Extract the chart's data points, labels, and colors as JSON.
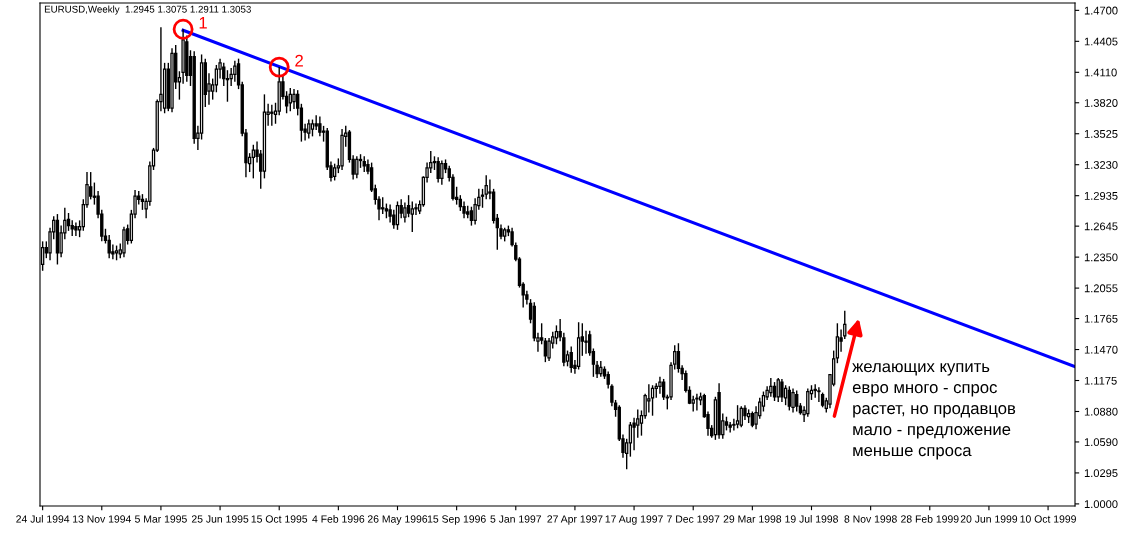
{
  "chart_data": {
    "type": "candlestick",
    "title": "EURUSD,Weekly  1.2945 1.3075 1.2911 1.3053",
    "x": [
      "1994-07-24",
      "1994-07-31",
      "1994-08-07",
      "1994-08-14",
      "1994-08-21",
      "1994-08-28",
      "1994-09-04",
      "1994-09-11",
      "1994-09-18",
      "1994-09-25",
      "1994-10-02",
      "1994-10-09",
      "1994-10-16",
      "1994-10-23",
      "1994-10-30",
      "1994-11-06",
      "1994-11-13",
      "1994-11-20",
      "1994-11-27",
      "1994-12-04",
      "1994-12-11",
      "1994-12-18",
      "1994-12-25",
      "1995-01-01",
      "1995-01-08",
      "1995-01-15",
      "1995-01-22",
      "1995-01-29",
      "1995-02-05",
      "1995-02-12",
      "1995-02-19",
      "1995-02-26",
      "1995-03-05",
      "1995-03-12",
      "1995-03-19",
      "1995-03-26",
      "1995-04-02",
      "1995-04-09",
      "1995-04-16",
      "1995-04-23",
      "1995-04-30",
      "1995-05-07",
      "1995-05-14",
      "1995-05-21",
      "1995-05-28",
      "1995-06-04",
      "1995-06-11",
      "1995-06-18",
      "1995-06-25",
      "1995-07-02",
      "1995-07-09",
      "1995-07-16",
      "1995-07-23",
      "1995-07-30",
      "1995-08-06",
      "1995-08-13",
      "1995-08-20",
      "1995-08-27",
      "1995-09-03",
      "1995-09-10",
      "1995-09-17",
      "1995-09-24",
      "1995-10-01",
      "1995-10-08",
      "1995-10-15",
      "1995-10-22",
      "1995-10-29",
      "1995-11-05",
      "1995-11-12",
      "1995-11-19",
      "1995-11-26",
      "1995-12-03",
      "1995-12-10",
      "1995-12-17",
      "1995-12-24",
      "1995-12-31",
      "1996-01-07",
      "1996-01-14",
      "1996-01-21",
      "1996-01-28",
      "1996-02-04",
      "1996-02-11",
      "1996-02-18",
      "1996-02-25",
      "1996-03-03",
      "1996-03-10",
      "1996-03-17",
      "1996-03-24",
      "1996-03-31",
      "1996-04-07",
      "1996-04-14",
      "1996-04-21",
      "1996-04-28",
      "1996-05-05",
      "1996-05-12",
      "1996-05-19",
      "1996-05-26",
      "1996-06-02",
      "1996-06-09",
      "1996-06-16",
      "1996-06-23",
      "1996-06-30",
      "1996-07-07",
      "1996-07-14",
      "1996-07-21",
      "1996-07-28",
      "1996-08-04",
      "1996-08-11",
      "1996-08-18",
      "1996-08-25",
      "1996-09-01",
      "1996-09-08",
      "1996-09-15",
      "1996-09-22",
      "1996-09-29",
      "1996-10-06",
      "1996-10-13",
      "1996-10-20",
      "1996-10-27",
      "1996-11-03",
      "1996-11-10",
      "1996-11-17",
      "1996-11-24",
      "1996-12-01",
      "1996-12-08",
      "1996-12-15",
      "1996-12-22",
      "1996-12-29",
      "1997-01-05",
      "1997-01-12",
      "1997-01-19",
      "1997-01-26",
      "1997-02-02",
      "1997-02-09",
      "1997-02-16",
      "1997-02-23",
      "1997-03-02",
      "1997-03-09",
      "1997-03-16",
      "1997-03-23",
      "1997-03-30",
      "1997-04-06",
      "1997-04-13",
      "1997-04-20",
      "1997-04-27",
      "1997-05-04",
      "1997-05-11",
      "1997-05-18",
      "1997-05-25",
      "1997-06-01",
      "1997-06-08",
      "1997-06-15",
      "1997-06-22",
      "1997-06-29",
      "1997-07-06",
      "1997-07-13",
      "1997-07-20",
      "1997-07-27",
      "1997-08-03",
      "1997-08-10",
      "1997-08-17",
      "1997-08-24",
      "1997-08-31",
      "1997-09-07",
      "1997-09-14",
      "1997-09-21",
      "1997-09-28",
      "1997-10-05",
      "1997-10-12",
      "1997-10-19",
      "1997-10-26",
      "1997-11-02",
      "1997-11-09",
      "1997-11-16",
      "1997-11-23",
      "1997-11-30",
      "1997-12-07",
      "1997-12-14",
      "1997-12-21",
      "1997-12-28",
      "1998-01-04",
      "1998-01-11",
      "1998-01-18",
      "1998-01-25",
      "1998-02-01",
      "1998-02-08",
      "1998-02-15",
      "1998-02-22",
      "1998-03-01",
      "1998-03-08",
      "1998-03-15",
      "1998-03-22",
      "1998-03-29",
      "1998-04-05",
      "1998-04-12",
      "1998-04-19",
      "1998-04-26",
      "1998-05-03",
      "1998-05-10",
      "1998-05-17",
      "1998-05-24",
      "1998-05-31",
      "1998-06-07",
      "1998-06-14",
      "1998-06-21",
      "1998-06-28",
      "1998-07-05",
      "1998-07-12",
      "1998-07-19",
      "1998-07-26",
      "1998-08-02",
      "1998-08-09",
      "1998-08-16",
      "1998-08-23",
      "1998-08-30",
      "1998-09-06",
      "1998-09-13",
      "1998-09-20"
    ],
    "ohlc": [
      [
        1.228,
        1.25,
        1.222,
        1.244
      ],
      [
        1.244,
        1.25,
        1.234,
        1.239
      ],
      [
        1.239,
        1.263,
        1.232,
        1.259
      ],
      [
        1.259,
        1.274,
        1.252,
        1.27
      ],
      [
        1.27,
        1.276,
        1.228,
        1.239
      ],
      [
        1.239,
        1.265,
        1.235,
        1.258
      ],
      [
        1.258,
        1.282,
        1.252,
        1.27
      ],
      [
        1.271,
        1.277,
        1.26,
        1.265
      ],
      [
        1.265,
        1.27,
        1.255,
        1.262
      ],
      [
        1.264,
        1.268,
        1.255,
        1.261
      ],
      [
        1.261,
        1.27,
        1.254,
        1.264
      ],
      [
        1.264,
        1.29,
        1.26,
        1.285
      ],
      [
        1.285,
        1.316,
        1.282,
        1.304
      ],
      [
        1.302,
        1.316,
        1.29,
        1.293
      ],
      [
        1.293,
        1.306,
        1.285,
        1.292
      ],
      [
        1.293,
        1.298,
        1.272,
        1.276
      ],
      [
        1.276,
        1.28,
        1.25,
        1.255
      ],
      [
        1.255,
        1.262,
        1.248,
        1.251
      ],
      [
        1.251,
        1.256,
        1.234,
        1.239
      ],
      [
        1.24,
        1.247,
        1.233,
        1.238
      ],
      [
        1.239,
        1.246,
        1.232,
        1.241
      ],
      [
        1.238,
        1.248,
        1.234,
        1.242
      ],
      [
        1.239,
        1.264,
        1.235,
        1.261
      ],
      [
        1.262,
        1.266,
        1.247,
        1.251
      ],
      [
        1.251,
        1.28,
        1.248,
        1.276
      ],
      [
        1.276,
        1.299,
        1.272,
        1.293
      ],
      [
        1.293,
        1.298,
        1.285,
        1.29
      ],
      [
        1.29,
        1.295,
        1.28,
        1.288
      ],
      [
        1.281,
        1.291,
        1.272,
        1.288
      ],
      [
        1.288,
        1.326,
        1.284,
        1.322
      ],
      [
        1.322,
        1.339,
        1.318,
        1.337
      ],
      [
        1.337,
        1.385,
        1.335,
        1.383
      ],
      [
        1.383,
        1.454,
        1.374,
        1.39
      ],
      [
        1.377,
        1.42,
        1.372,
        1.414
      ],
      [
        1.414,
        1.42,
        1.374,
        1.377
      ],
      [
        1.377,
        1.434,
        1.373,
        1.429
      ],
      [
        1.429,
        1.437,
        1.395,
        1.402
      ],
      [
        1.402,
        1.412,
        1.385,
        1.406
      ],
      [
        1.411,
        1.452,
        1.4,
        1.442
      ],
      [
        1.44,
        1.446,
        1.402,
        1.408
      ],
      [
        1.426,
        1.432,
        1.398,
        1.408
      ],
      [
        1.426,
        1.431,
        1.343,
        1.348
      ],
      [
        1.348,
        1.36,
        1.337,
        1.353
      ],
      [
        1.353,
        1.428,
        1.347,
        1.42
      ],
      [
        1.42,
        1.424,
        1.378,
        1.39
      ],
      [
        1.393,
        1.41,
        1.38,
        1.4
      ],
      [
        1.393,
        1.405,
        1.385,
        1.399
      ],
      [
        1.399,
        1.418,
        1.392,
        1.414
      ],
      [
        1.414,
        1.424,
        1.405,
        1.42
      ],
      [
        1.416,
        1.42,
        1.398,
        1.405
      ],
      [
        1.405,
        1.413,
        1.383,
        1.404
      ],
      [
        1.405,
        1.415,
        1.398,
        1.409
      ],
      [
        1.409,
        1.422,
        1.402,
        1.417
      ],
      [
        1.419,
        1.424,
        1.395,
        1.399
      ],
      [
        1.399,
        1.402,
        1.35,
        1.353
      ],
      [
        1.353,
        1.357,
        1.311,
        1.325
      ],
      [
        1.324,
        1.334,
        1.316,
        1.33
      ],
      [
        1.33,
        1.342,
        1.31,
        1.337
      ],
      [
        1.337,
        1.345,
        1.325,
        1.331
      ],
      [
        1.333,
        1.337,
        1.3,
        1.317
      ],
      [
        1.317,
        1.39,
        1.31,
        1.373
      ],
      [
        1.371,
        1.381,
        1.36,
        1.373
      ],
      [
        1.373,
        1.38,
        1.36,
        1.372
      ],
      [
        1.371,
        1.382,
        1.362,
        1.374
      ],
      [
        1.374,
        1.416,
        1.37,
        1.402
      ],
      [
        1.402,
        1.408,
        1.385,
        1.388
      ],
      [
        1.388,
        1.393,
        1.372,
        1.379
      ],
      [
        1.382,
        1.396,
        1.374,
        1.39
      ],
      [
        1.383,
        1.395,
        1.376,
        1.39
      ],
      [
        1.39,
        1.394,
        1.37,
        1.377
      ],
      [
        1.377,
        1.381,
        1.345,
        1.356
      ],
      [
        1.357,
        1.362,
        1.346,
        1.354
      ],
      [
        1.353,
        1.366,
        1.348,
        1.362
      ],
      [
        1.357,
        1.366,
        1.35,
        1.362
      ],
      [
        1.362,
        1.37,
        1.356,
        1.36
      ],
      [
        1.362,
        1.369,
        1.35,
        1.354
      ],
      [
        1.355,
        1.36,
        1.345,
        1.354
      ],
      [
        1.355,
        1.358,
        1.318,
        1.321
      ],
      [
        1.322,
        1.326,
        1.307,
        1.311
      ],
      [
        1.312,
        1.324,
        1.308,
        1.32
      ],
      [
        1.32,
        1.329,
        1.315,
        1.322
      ],
      [
        1.322,
        1.357,
        1.318,
        1.351
      ],
      [
        1.35,
        1.36,
        1.34,
        1.353
      ],
      [
        1.354,
        1.356,
        1.325,
        1.328
      ],
      [
        1.328,
        1.332,
        1.309,
        1.314
      ],
      [
        1.314,
        1.331,
        1.31,
        1.328
      ],
      [
        1.328,
        1.333,
        1.32,
        1.327
      ],
      [
        1.326,
        1.331,
        1.316,
        1.322
      ],
      [
        1.323,
        1.328,
        1.314,
        1.317
      ],
      [
        1.32,
        1.325,
        1.297,
        1.299
      ],
      [
        1.3,
        1.304,
        1.285,
        1.29
      ],
      [
        1.29,
        1.293,
        1.27,
        1.281
      ],
      [
        1.281,
        1.292,
        1.276,
        1.282
      ],
      [
        1.281,
        1.286,
        1.272,
        1.279
      ],
      [
        1.28,
        1.285,
        1.268,
        1.274
      ],
      [
        1.275,
        1.28,
        1.262,
        1.266
      ],
      [
        1.266,
        1.288,
        1.261,
        1.284
      ],
      [
        1.284,
        1.29,
        1.272,
        1.277
      ],
      [
        1.273,
        1.287,
        1.268,
        1.282
      ],
      [
        1.284,
        1.294,
        1.273,
        1.277
      ],
      [
        1.276,
        1.288,
        1.259,
        1.281
      ],
      [
        1.281,
        1.286,
        1.275,
        1.282
      ],
      [
        1.279,
        1.289,
        1.276,
        1.285
      ],
      [
        1.285,
        1.312,
        1.283,
        1.311
      ],
      [
        1.311,
        1.325,
        1.306,
        1.32
      ],
      [
        1.32,
        1.336,
        1.315,
        1.325
      ],
      [
        1.325,
        1.331,
        1.318,
        1.326
      ],
      [
        1.326,
        1.33,
        1.306,
        1.31
      ],
      [
        1.31,
        1.327,
        1.304,
        1.324
      ],
      [
        1.324,
        1.328,
        1.315,
        1.319
      ],
      [
        1.319,
        1.322,
        1.307,
        1.311
      ],
      [
        1.311,
        1.314,
        1.289,
        1.291
      ],
      [
        1.292,
        1.302,
        1.285,
        1.29
      ],
      [
        1.29,
        1.294,
        1.279,
        1.283
      ],
      [
        1.283,
        1.288,
        1.272,
        1.277
      ],
      [
        1.278,
        1.284,
        1.272,
        1.276
      ],
      [
        1.279,
        1.283,
        1.265,
        1.27
      ],
      [
        1.27,
        1.291,
        1.266,
        1.285
      ],
      [
        1.284,
        1.3,
        1.28,
        1.292
      ],
      [
        1.293,
        1.3,
        1.282,
        1.294
      ],
      [
        1.295,
        1.313,
        1.29,
        1.303
      ],
      [
        1.297,
        1.309,
        1.29,
        1.296
      ],
      [
        1.297,
        1.3,
        1.267,
        1.27
      ],
      [
        1.272,
        1.276,
        1.242,
        1.263
      ],
      [
        1.262,
        1.266,
        1.252,
        1.255
      ],
      [
        1.255,
        1.263,
        1.25,
        1.261
      ],
      [
        1.261,
        1.265,
        1.255,
        1.259
      ],
      [
        1.259,
        1.263,
        1.245,
        1.247
      ],
      [
        1.246,
        1.249,
        1.231,
        1.233
      ],
      [
        1.233,
        1.235,
        1.206,
        1.208
      ],
      [
        1.209,
        1.211,
        1.187,
        1.199
      ],
      [
        1.199,
        1.203,
        1.19,
        1.195
      ],
      [
        1.191,
        1.195,
        1.172,
        1.176
      ],
      [
        1.188,
        1.192,
        1.155,
        1.158
      ],
      [
        1.155,
        1.163,
        1.145,
        1.158
      ],
      [
        1.158,
        1.172,
        1.152,
        1.156
      ],
      [
        1.155,
        1.158,
        1.135,
        1.141
      ],
      [
        1.139,
        1.158,
        1.136,
        1.155
      ],
      [
        1.153,
        1.164,
        1.148,
        1.159
      ],
      [
        1.158,
        1.17,
        1.152,
        1.164
      ],
      [
        1.164,
        1.176,
        1.155,
        1.159
      ],
      [
        1.158,
        1.163,
        1.131,
        1.135
      ],
      [
        1.136,
        1.146,
        1.131,
        1.142
      ],
      [
        1.144,
        1.15,
        1.125,
        1.13
      ],
      [
        1.132,
        1.137,
        1.124,
        1.129
      ],
      [
        1.131,
        1.173,
        1.128,
        1.158
      ],
      [
        1.159,
        1.172,
        1.141,
        1.155
      ],
      [
        1.155,
        1.165,
        1.143,
        1.154
      ],
      [
        1.161,
        1.165,
        1.141,
        1.144
      ],
      [
        1.145,
        1.148,
        1.121,
        1.133
      ],
      [
        1.132,
        1.136,
        1.12,
        1.124
      ],
      [
        1.124,
        1.136,
        1.121,
        1.13
      ],
      [
        1.128,
        1.131,
        1.119,
        1.122
      ],
      [
        1.123,
        1.126,
        1.11,
        1.114
      ],
      [
        1.112,
        1.114,
        1.093,
        1.097
      ],
      [
        1.096,
        1.099,
        1.083,
        1.09
      ],
      [
        1.092,
        1.094,
        1.06,
        1.062
      ],
      [
        1.062,
        1.066,
        1.044,
        1.049
      ],
      [
        1.048,
        1.062,
        1.033,
        1.058
      ],
      [
        1.058,
        1.078,
        1.045,
        1.075
      ],
      [
        1.077,
        1.082,
        1.051,
        1.073
      ],
      [
        1.075,
        1.09,
        1.063,
        1.081
      ],
      [
        1.077,
        1.089,
        1.065,
        1.084
      ],
      [
        1.084,
        1.105,
        1.081,
        1.103
      ],
      [
        1.098,
        1.114,
        1.087,
        1.1
      ],
      [
        1.101,
        1.113,
        1.084,
        1.11
      ],
      [
        1.11,
        1.115,
        1.101,
        1.112
      ],
      [
        1.112,
        1.121,
        1.105,
        1.116
      ],
      [
        1.116,
        1.119,
        1.099,
        1.102
      ],
      [
        1.101,
        1.104,
        1.09,
        1.101
      ],
      [
        1.102,
        1.135,
        1.099,
        1.132
      ],
      [
        1.133,
        1.151,
        1.128,
        1.145
      ],
      [
        1.145,
        1.153,
        1.125,
        1.129
      ],
      [
        1.129,
        1.132,
        1.118,
        1.124
      ],
      [
        1.124,
        1.127,
        1.106,
        1.108
      ],
      [
        1.108,
        1.112,
        1.095,
        1.096
      ],
      [
        1.096,
        1.103,
        1.088,
        1.099
      ],
      [
        1.1,
        1.105,
        1.089,
        1.1
      ],
      [
        1.099,
        1.106,
        1.094,
        1.102
      ],
      [
        1.103,
        1.105,
        1.082,
        1.083
      ],
      [
        1.085,
        1.088,
        1.065,
        1.072
      ],
      [
        1.072,
        1.075,
        1.063,
        1.065
      ],
      [
        1.066,
        1.102,
        1.061,
        1.099
      ],
      [
        1.106,
        1.115,
        1.062,
        1.066
      ],
      [
        1.066,
        1.086,
        1.062,
        1.079
      ],
      [
        1.078,
        1.083,
        1.07,
        1.075
      ],
      [
        1.075,
        1.078,
        1.068,
        1.073
      ],
      [
        1.075,
        1.081,
        1.07,
        1.075
      ],
      [
        1.076,
        1.094,
        1.072,
        1.079
      ],
      [
        1.075,
        1.093,
        1.073,
        1.091
      ],
      [
        1.091,
        1.094,
        1.08,
        1.084
      ],
      [
        1.083,
        1.09,
        1.077,
        1.086
      ],
      [
        1.086,
        1.088,
        1.073,
        1.075
      ],
      [
        1.076,
        1.093,
        1.071,
        1.087
      ],
      [
        1.084,
        1.101,
        1.081,
        1.097
      ],
      [
        1.093,
        1.107,
        1.088,
        1.103
      ],
      [
        1.102,
        1.112,
        1.099,
        1.108
      ],
      [
        1.106,
        1.12,
        1.102,
        1.112
      ],
      [
        1.112,
        1.116,
        1.098,
        1.102
      ],
      [
        1.102,
        1.12,
        1.097,
        1.118
      ],
      [
        1.116,
        1.119,
        1.097,
        1.102
      ],
      [
        1.101,
        1.113,
        1.094,
        1.11
      ],
      [
        1.108,
        1.112,
        1.089,
        1.093
      ],
      [
        1.092,
        1.11,
        1.087,
        1.106
      ],
      [
        1.104,
        1.108,
        1.088,
        1.093
      ],
      [
        1.093,
        1.096,
        1.085,
        1.087
      ],
      [
        1.085,
        1.093,
        1.078,
        1.089
      ],
      [
        1.086,
        1.11,
        1.083,
        1.107
      ],
      [
        1.105,
        1.113,
        1.099,
        1.108
      ],
      [
        1.109,
        1.114,
        1.101,
        1.108
      ],
      [
        1.107,
        1.111,
        1.097,
        1.107
      ],
      [
        1.104,
        1.106,
        1.092,
        1.094
      ],
      [
        1.091,
        1.101,
        1.087,
        1.098
      ],
      [
        1.095,
        1.123,
        1.091,
        1.123
      ],
      [
        1.114,
        1.146,
        1.112,
        1.138
      ],
      [
        1.139,
        1.172,
        1.134,
        1.159
      ],
      [
        1.158,
        1.166,
        1.145,
        1.155
      ],
      [
        1.16,
        1.184,
        1.157,
        1.171
      ]
    ],
    "series": [
      {
        "type": "line",
        "color": "#0000ff",
        "x": [
          "1995-04-16",
          "1999-11-28"
        ],
        "values": [
          1.451,
          1.131
        ]
      }
    ],
    "xlim": [
      "1994-07-19",
      "1999-11-30"
    ],
    "xticks": [
      {
        "value": "1994-07-24",
        "label": "24 Jul 1994"
      },
      {
        "value": "1994-11-13",
        "label": "13 Nov 1994"
      },
      {
        "value": "1995-03-05",
        "label": "5 Mar 1995"
      },
      {
        "value": "1995-06-25",
        "label": "25 Jun 1995"
      },
      {
        "value": "1995-10-15",
        "label": "15 Oct 1995"
      },
      {
        "value": "1996-02-04",
        "label": "4 Feb 1996"
      },
      {
        "value": "1996-05-26",
        "label": "26 May 1996"
      },
      {
        "value": "1996-09-15",
        "label": "15 Sep 1996"
      },
      {
        "value": "1997-01-05",
        "label": "5 Jan 1997"
      },
      {
        "value": "1997-04-27",
        "label": "27 Apr 1997"
      },
      {
        "value": "1997-08-17",
        "label": "17 Aug 1997"
      },
      {
        "value": "1997-12-07",
        "label": "7 Dec 1997"
      },
      {
        "value": "1998-03-29",
        "label": "29 Mar 1998"
      },
      {
        "value": "1998-07-19",
        "label": "19 Jul 1998"
      },
      {
        "value": "1998-11-08",
        "label": "8 Nov 1998"
      },
      {
        "value": "1999-02-28",
        "label": "28 Feb 1999"
      },
      {
        "value": "1999-06-20",
        "label": "20 Jun 1999"
      },
      {
        "value": "1999-10-10",
        "label": "10 Oct 1999"
      }
    ],
    "ylim": [
      0.998,
      1.477
    ],
    "yticks": [
      {
        "value": 1.0,
        "label": "1.0000"
      },
      {
        "value": 1.0295,
        "label": "1.0295"
      },
      {
        "value": 1.059,
        "label": "1.0590"
      },
      {
        "value": 1.088,
        "label": "1.0880"
      },
      {
        "value": 1.1175,
        "label": "1.1175"
      },
      {
        "value": 1.147,
        "label": "1.1470"
      },
      {
        "value": 1.1765,
        "label": "1.1765"
      },
      {
        "value": 1.2055,
        "label": "1.2055"
      },
      {
        "value": 1.235,
        "label": "1.2350"
      },
      {
        "value": 1.2645,
        "label": "1.2645"
      },
      {
        "value": 1.2935,
        "label": "1.2935"
      },
      {
        "value": 1.323,
        "label": "1.3230"
      },
      {
        "value": 1.3525,
        "label": "1.3525"
      },
      {
        "value": 1.382,
        "label": "1.3820"
      },
      {
        "value": 1.411,
        "label": "1.4110"
      },
      {
        "value": 1.4405,
        "label": "1.4405"
      },
      {
        "value": 1.47,
        "label": "1.4700"
      }
    ],
    "annotations": [
      {
        "text": "1",
        "x": "1995-04-16",
        "y": 1.452
      },
      {
        "text": "2",
        "x": "1995-10-15",
        "y": 1.416
      },
      "желающих купить\nевро много - спрос\nрастет, но продавцов\nмало - предложение\nменьше спроса"
    ],
    "grid": false,
    "legend": false
  }
}
